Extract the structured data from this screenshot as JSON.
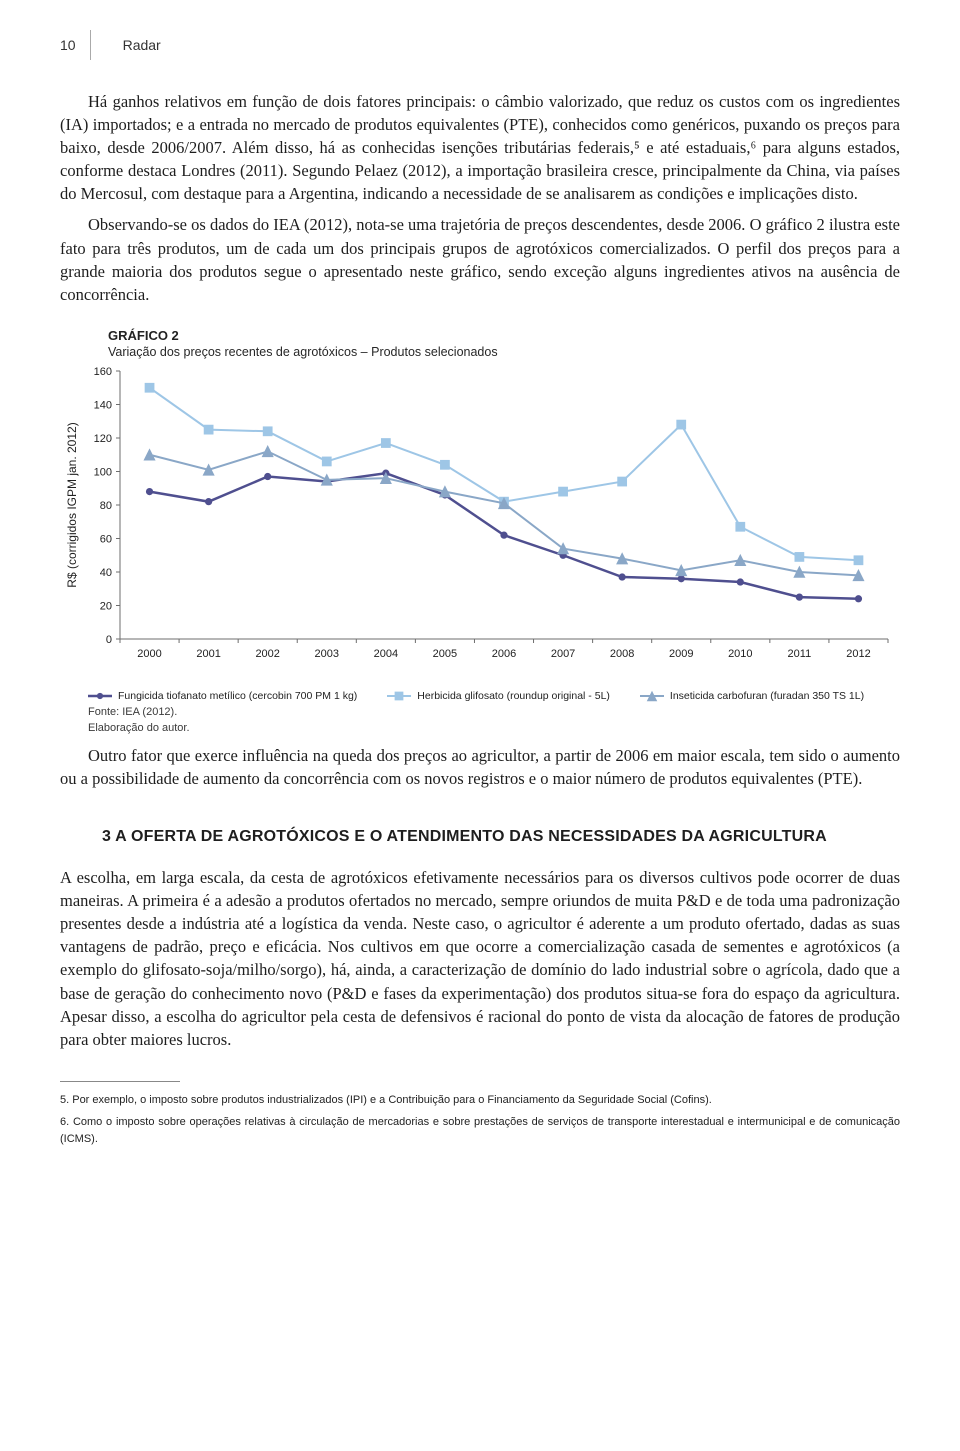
{
  "header": {
    "page_number": "10",
    "section_name": "Radar"
  },
  "paragraphs": {
    "p1": "Há ganhos relativos em função de dois fatores principais: o câmbio valorizado, que reduz os custos com os ingredientes (IA) importados; e a entrada no mercado de produtos equivalentes (PTE), conhecidos como genéricos, puxando os preços para baixo, desde 2006/2007. Além disso, há as conhecidas isenções tributárias federais,⁵ e até estaduais,⁶ para alguns estados, conforme destaca Londres (2011). Segundo Pelaez (2012), a importação brasileira cresce, principalmente da China, via países do Mercosul, com destaque para a Argentina, indicando a necessidade de se analisarem as condições e implicações disto.",
    "p2": "Observando-se os dados do IEA (2012), nota-se uma trajetória de preços descendentes, desde 2006. O gráfico 2 ilustra este fato para três produtos, um de cada um dos principais grupos de agrotóxicos comercializados. O perfil dos preços para a grande maioria dos produtos segue o apresentado neste gráfico, sendo exceção alguns ingredientes ativos na ausência de concorrência.",
    "p3": "Outro fator que exerce influência na queda dos preços ao agricultor, a partir de 2006 em maior escala, tem sido o aumento ou a possibilidade de aumento da concorrência com os novos registros e o maior número de produtos equivalentes (PTE).",
    "p4": "A escolha, em larga escala, da cesta de agrotóxicos efetivamente necessários para os diversos cultivos pode ocorrer de duas maneiras. A primeira é a adesão a produtos ofertados no mercado, sempre oriundos de muita P&D e de toda uma padronização presentes desde a indústria até a logística da venda. Neste caso, o agricultor é aderente a um produto ofertado, dadas as suas vantagens de padrão, preço e eficácia. Nos cultivos em que ocorre a comercialização casada de sementes e agrotóxicos (a exemplo do glifosato-soja/milho/sorgo), há, ainda, a caracterização de domínio do lado industrial sobre o agrícola, dado que a base de geração do conhecimento novo (P&D e fases da experimentação) dos produtos situa-se fora do espaço da agricultura. Apesar disso, a escolha do agricultor pela cesta de defensivos é racional do ponto de vista da alocação de fatores de produção para obter maiores lucros."
  },
  "section_heading": "3 A OFERTA DE AGROTÓXICOS E O ATENDIMENTO DAS NECESSIDADES DA AGRICULTURA",
  "footnotes": {
    "f5": "5. Por exemplo, o imposto sobre produtos industrializados (IPI) e a Contribuição para o Financiamento da Seguridade Social (Cofins).",
    "f6": "6. Como o imposto sobre operações relativas à circulação de mercadorias e sobre prestações de serviços de transporte interestadual e intermunicipal e de comunicação (ICMS)."
  },
  "chart": {
    "title": "GRÁFICO 2",
    "subtitle": "Variação dos preços recentes de agrotóxicos – Produtos selecionados",
    "type": "line",
    "ylabel": "R$ (corrigidos IGPM jan. 2012)",
    "categories": [
      "2000",
      "2001",
      "2002",
      "2003",
      "2004",
      "2005",
      "2006",
      "2007",
      "2008",
      "2009",
      "2010",
      "2011",
      "2012"
    ],
    "ylim": [
      0,
      160
    ],
    "ytick_step": 20,
    "yticks": [
      0,
      20,
      40,
      60,
      80,
      100,
      120,
      140,
      160
    ],
    "background_color": "#ffffff",
    "axis_color": "#6d6d6d",
    "tick_font_size": 11,
    "label_font_size": 12,
    "series": [
      {
        "id": "fungicida",
        "name": "Fungicida tiofanato metílico (cercobin 700 PM 1 kg)",
        "color": "#4f4f8f",
        "marker": "circle",
        "marker_size": 5,
        "line_width": 2.5,
        "values": [
          88,
          82,
          97,
          94,
          99,
          86,
          62,
          50,
          37,
          36,
          34,
          25,
          24
        ]
      },
      {
        "id": "herbicida",
        "name": "Herbicida glifosato (roundup original - 5L)",
        "color": "#9ec6e6",
        "marker": "square",
        "marker_size": 7,
        "line_width": 2,
        "values": [
          150,
          125,
          124,
          106,
          117,
          104,
          82,
          88,
          94,
          128,
          67,
          49,
          47
        ]
      },
      {
        "id": "inseticida",
        "name": "Inseticida carbofuran (furadan 350 TS 1L)",
        "color": "#8aa7c7",
        "marker": "triangle",
        "marker_size": 7,
        "line_width": 2,
        "values": [
          110,
          101,
          112,
          95,
          96,
          88,
          81,
          54,
          48,
          41,
          47,
          40,
          38
        ]
      }
    ],
    "source_lines": [
      "Fonte: IEA (2012).",
      "Elaboração do autor."
    ]
  }
}
